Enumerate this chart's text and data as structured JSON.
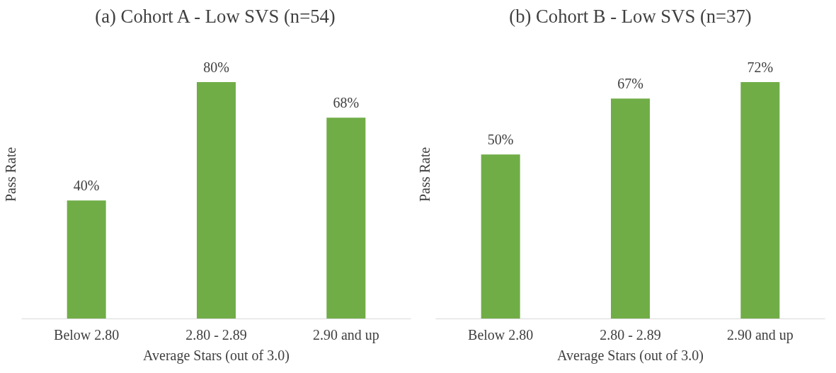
{
  "chart_data": [
    {
      "type": "bar",
      "title": "(a) Cohort A - Low SVS (n=54)",
      "xlabel": "Average Stars (out of 3.0)",
      "ylabel": "Pass Rate",
      "categories": [
        "Below 2.80",
        "2.80 - 2.89",
        "2.90 and up"
      ],
      "values": [
        40,
        80,
        68
      ],
      "value_labels": [
        "40%",
        "80%",
        "68%"
      ],
      "color": "#70ad47",
      "grid": false
    },
    {
      "type": "bar",
      "title": "(b) Cohort B - Low SVS (n=37)",
      "xlabel": "Average Stars (out of 3.0)",
      "ylabel": "Pass Rate",
      "categories": [
        "Below 2.80",
        "2.80 - 2.89",
        "2.90 and up"
      ],
      "values": [
        50,
        67,
        72
      ],
      "value_labels": [
        "50%",
        "67%",
        "72%"
      ],
      "color": "#70ad47",
      "grid": false
    }
  ]
}
